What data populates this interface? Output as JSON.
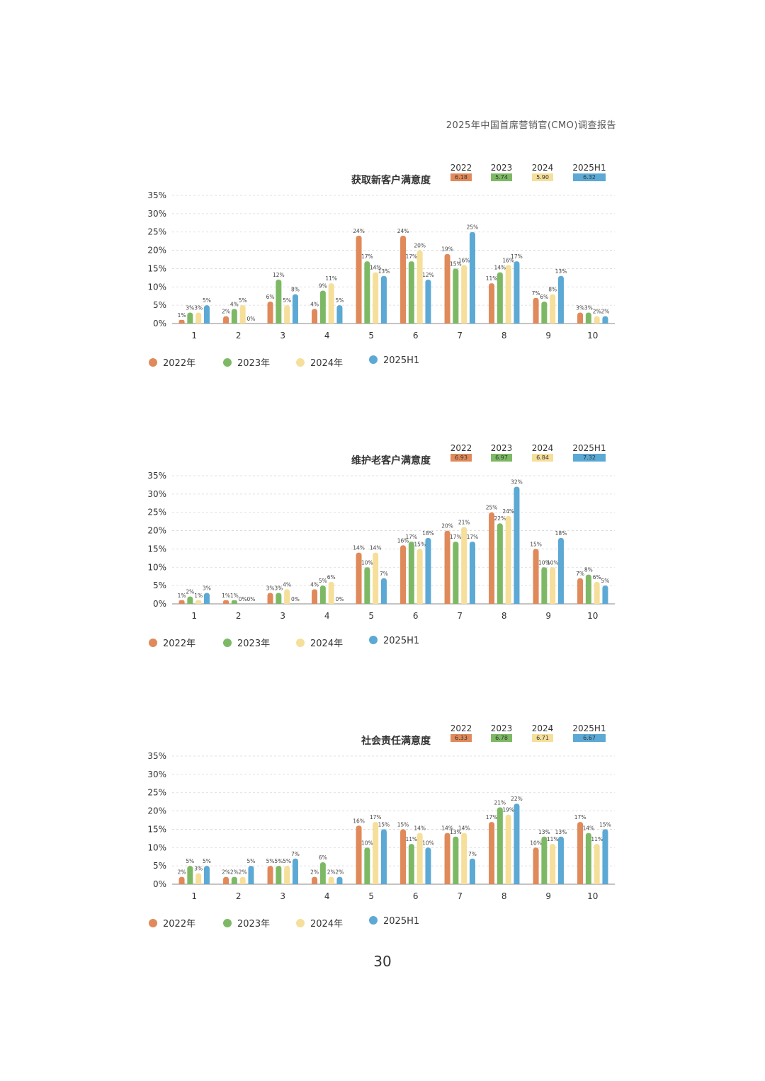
{
  "header": {
    "title": "2025年中国首席营销官(CMO)调查报告"
  },
  "page_number": "30",
  "colors": {
    "s2022": "#E0895A",
    "s2023": "#7DB965",
    "s2024": "#F5DF9A",
    "s2025": "#5BA9D4"
  },
  "legend": [
    "2022年",
    "2023年",
    "2024年",
    "2025H1"
  ],
  "chart_data": [
    {
      "type": "bar",
      "title": "获取新客户满意度",
      "categories": [
        "1",
        "2",
        "3",
        "4",
        "5",
        "6",
        "7",
        "8",
        "9",
        "10"
      ],
      "y_ticks": [
        "0%",
        "5%",
        "10%",
        "15%",
        "20%",
        "25%",
        "30%",
        "35%"
      ],
      "ylim": [
        0,
        35
      ],
      "grid": true,
      "legend_position": "bottom-left",
      "scores": [
        {
          "year": "2022",
          "value": "6.18"
        },
        {
          "year": "2023",
          "value": "5.74"
        },
        {
          "year": "2024",
          "value": "5.90"
        },
        {
          "year": "2025H1",
          "value": "6.32"
        }
      ],
      "series": [
        {
          "values": [
            1,
            2,
            6,
            4,
            24,
            24,
            19,
            11,
            7,
            3
          ],
          "labels": [
            "1%",
            "2%",
            "6%",
            "4%",
            "24%",
            "24%",
            "19%",
            "11%",
            "7%",
            "3%"
          ]
        },
        {
          "values": [
            3,
            4,
            12,
            9,
            17,
            17,
            15,
            14,
            6,
            3
          ],
          "labels": [
            "3%",
            "4%",
            "12%",
            "9%",
            "17%",
            "17%",
            "15%",
            "14%",
            "6%",
            "3%"
          ]
        },
        {
          "values": [
            3,
            5,
            5,
            11,
            14,
            20,
            16,
            16,
            8,
            2
          ],
          "labels": [
            "3%",
            "5%",
            "5%",
            "11%",
            "14%",
            "20%",
            "16%",
            "16%",
            "8%",
            "2%"
          ]
        },
        {
          "values": [
            5,
            0,
            8,
            5,
            13,
            12,
            25,
            17,
            13,
            2
          ],
          "labels": [
            "5%",
            "0%",
            "8%",
            "5%",
            "13%",
            "12%",
            "25%",
            "17%",
            "13%",
            "2%"
          ]
        }
      ]
    },
    {
      "type": "bar",
      "title": "维护老客户满意度",
      "categories": [
        "1",
        "2",
        "3",
        "4",
        "5",
        "6",
        "7",
        "8",
        "9",
        "10"
      ],
      "y_ticks": [
        "0%",
        "5%",
        "10%",
        "15%",
        "20%",
        "25%",
        "30%",
        "35%"
      ],
      "ylim": [
        0,
        35
      ],
      "grid": true,
      "legend_position": "bottom-left",
      "scores": [
        {
          "year": "2022",
          "value": "6.93"
        },
        {
          "year": "2023",
          "value": "6.97"
        },
        {
          "year": "2024",
          "value": "6.84"
        },
        {
          "year": "2025H1",
          "value": "7.32"
        }
      ],
      "series": [
        {
          "values": [
            1,
            1,
            3,
            4,
            14,
            16,
            20,
            25,
            15,
            7
          ],
          "labels": [
            "1%",
            "1%",
            "3%",
            "4%",
            "14%",
            "16%",
            "20%",
            "25%",
            "15%",
            "7%"
          ]
        },
        {
          "values": [
            2,
            1,
            3,
            5,
            10,
            17,
            17,
            22,
            10,
            8
          ],
          "labels": [
            "2%",
            "1%",
            "3%",
            "5%",
            "10%",
            "17%",
            "17%",
            "22%",
            "10%",
            "8%"
          ]
        },
        {
          "values": [
            1,
            0,
            4,
            6,
            14,
            15,
            21,
            24,
            10,
            6
          ],
          "labels": [
            "1%",
            "0%",
            "4%",
            "6%",
            "14%",
            "15%",
            "21%",
            "24%",
            "10%",
            "6%"
          ]
        },
        {
          "values": [
            3,
            0,
            0,
            0,
            7,
            18,
            17,
            32,
            18,
            5
          ],
          "labels": [
            "3%",
            "0%",
            "0%",
            "0%",
            "7%",
            "18%",
            "17%",
            "32%",
            "18%",
            "5%"
          ]
        }
      ]
    },
    {
      "type": "bar",
      "title": "社会责任满意度",
      "categories": [
        "1",
        "2",
        "3",
        "4",
        "5",
        "6",
        "7",
        "8",
        "9",
        "10"
      ],
      "y_ticks": [
        "0%",
        "5%",
        "10%",
        "15%",
        "20%",
        "25%",
        "30%",
        "35%"
      ],
      "ylim": [
        0,
        35
      ],
      "grid": true,
      "legend_position": "bottom-left",
      "scores": [
        {
          "year": "2022",
          "value": "6.33"
        },
        {
          "year": "2023",
          "value": "6.78"
        },
        {
          "year": "2024",
          "value": "6.71"
        },
        {
          "year": "2025H1",
          "value": "6.67"
        }
      ],
      "series": [
        {
          "values": [
            2,
            2,
            5,
            2,
            16,
            15,
            14,
            17,
            10,
            17
          ],
          "labels": [
            "2%",
            "2%",
            "5%",
            "2%",
            "16%",
            "15%",
            "14%",
            "17%",
            "10%",
            "17%"
          ]
        },
        {
          "values": [
            5,
            2,
            5,
            6,
            10,
            11,
            13,
            21,
            13,
            14
          ],
          "labels": [
            "5%",
            "2%",
            "5%",
            "6%",
            "10%",
            "11%",
            "13%",
            "21%",
            "13%",
            "14%"
          ]
        },
        {
          "values": [
            3,
            2,
            5,
            2,
            17,
            14,
            14,
            19,
            11,
            11
          ],
          "labels": [
            "3%",
            "2%",
            "5%",
            "2%",
            "17%",
            "14%",
            "14%",
            "19%",
            "11%",
            "11%"
          ]
        },
        {
          "values": [
            5,
            5,
            7,
            2,
            15,
            10,
            7,
            22,
            13,
            15
          ],
          "labels": [
            "5%",
            "5%",
            "7%",
            "2%",
            "15%",
            "10%",
            "7%",
            "22%",
            "13%",
            "15%"
          ]
        }
      ]
    }
  ]
}
